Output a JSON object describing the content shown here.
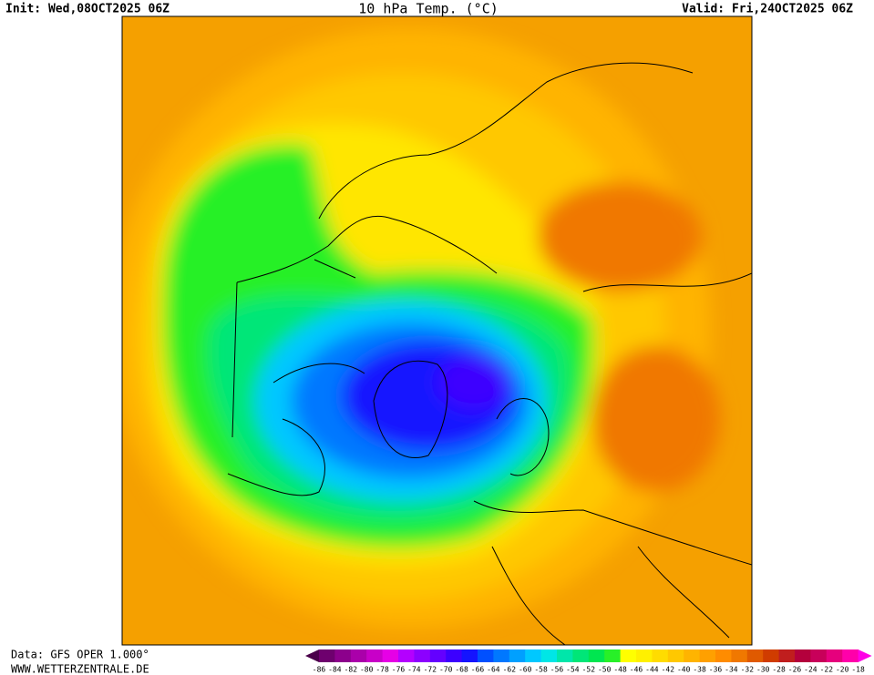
{
  "header": {
    "init": "Init: Wed,08OCT2025 06Z",
    "title": "10 hPa Temp. (°C)",
    "valid": "Valid: Fri,24OCT2025 06Z"
  },
  "footer": {
    "source": "Data: GFS OPER 1.000°",
    "website": "WWW.WETTERZENTRALE.DE"
  },
  "colorbar": {
    "labels": [
      -86,
      -84,
      -82,
      -80,
      -78,
      -76,
      -74,
      -72,
      -70,
      -68,
      -66,
      -64,
      -62,
      -60,
      -58,
      -56,
      -54,
      -52,
      -50,
      -48,
      -46,
      -44,
      -42,
      -40,
      -38,
      -36,
      -34,
      -32,
      -30,
      -28,
      -26,
      -24,
      -22,
      -20,
      -18
    ],
    "low_color": "#4a004a",
    "colors": [
      "#6e006e",
      "#8c008c",
      "#aa00aa",
      "#c800c8",
      "#e600e6",
      "#b400ff",
      "#8c00ff",
      "#6400ff",
      "#3c00ff",
      "#1414ff",
      "#0050ff",
      "#0078ff",
      "#00a0ff",
      "#00c8ff",
      "#00e6e6",
      "#00e6aa",
      "#00e678",
      "#00e650",
      "#28f028",
      "#ffff00",
      "#fff000",
      "#ffdc00",
      "#ffc800",
      "#ffb400",
      "#ffa000",
      "#ff8c00",
      "#f07800",
      "#e05a00",
      "#d03c00",
      "#c01e1e",
      "#b4003c",
      "#c8005a",
      "#e6007d",
      "#ff00aa"
    ],
    "high_color": "#ff00e6"
  }
}
